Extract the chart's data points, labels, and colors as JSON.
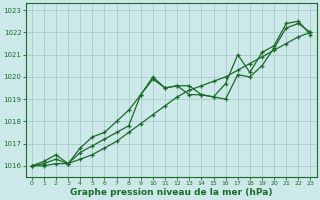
{
  "xlabel": "Graphe pression niveau de la mer (hPa)",
  "background_color": "#cce8e8",
  "line_color": "#1a6b2a",
  "grid_color": "#aacccc",
  "xlim": [
    -0.5,
    23.5
  ],
  "ylim": [
    1015.5,
    1023.3
  ],
  "yticks": [
    1016,
    1017,
    1018,
    1019,
    1020,
    1021,
    1022,
    1023
  ],
  "xticks": [
    0,
    1,
    2,
    3,
    4,
    5,
    6,
    7,
    8,
    9,
    10,
    11,
    12,
    13,
    14,
    15,
    16,
    17,
    18,
    19,
    20,
    21,
    22,
    23
  ],
  "line1_x": [
    0,
    1,
    2,
    3,
    4,
    5,
    6,
    7,
    8,
    9,
    10,
    11,
    12,
    13,
    14,
    15,
    16,
    17,
    18,
    19,
    20,
    21,
    22,
    23
  ],
  "line1_y": [
    1016.0,
    1016.1,
    1016.3,
    1016.1,
    1016.6,
    1016.9,
    1017.2,
    1017.5,
    1017.8,
    1019.2,
    1020.0,
    1019.5,
    1019.6,
    1019.6,
    1019.2,
    1019.1,
    1019.0,
    1020.1,
    1020.0,
    1020.5,
    1021.3,
    1022.2,
    1022.4,
    1022.0
  ],
  "line2_x": [
    0,
    1,
    2,
    3,
    4,
    5,
    6,
    7,
    8,
    9,
    10,
    11,
    12,
    13,
    14,
    15,
    16,
    17,
    18,
    19,
    20,
    21,
    22,
    23
  ],
  "line2_y": [
    1016.0,
    1016.0,
    1016.1,
    1016.1,
    1016.3,
    1016.5,
    1016.8,
    1017.1,
    1017.5,
    1017.9,
    1018.3,
    1018.7,
    1019.1,
    1019.4,
    1019.6,
    1019.8,
    1020.0,
    1020.3,
    1020.6,
    1020.9,
    1021.2,
    1021.5,
    1021.8,
    1022.0
  ],
  "line3_x": [
    0,
    1,
    2,
    3,
    4,
    5,
    6,
    7,
    8,
    9,
    10,
    11,
    12,
    13,
    14,
    15,
    16,
    17,
    18,
    19,
    20,
    21,
    22,
    23
  ],
  "line3_y": [
    1016.0,
    1016.2,
    1016.5,
    1016.1,
    1016.8,
    1017.3,
    1017.5,
    1018.0,
    1018.5,
    1019.2,
    1019.9,
    1019.5,
    1019.6,
    1019.2,
    1019.2,
    1019.1,
    1019.7,
    1021.0,
    1020.2,
    1021.1,
    1021.4,
    1022.4,
    1022.5,
    1021.9
  ],
  "xlabel_fontsize": 6.5,
  "tick_fontsize": 5.0
}
